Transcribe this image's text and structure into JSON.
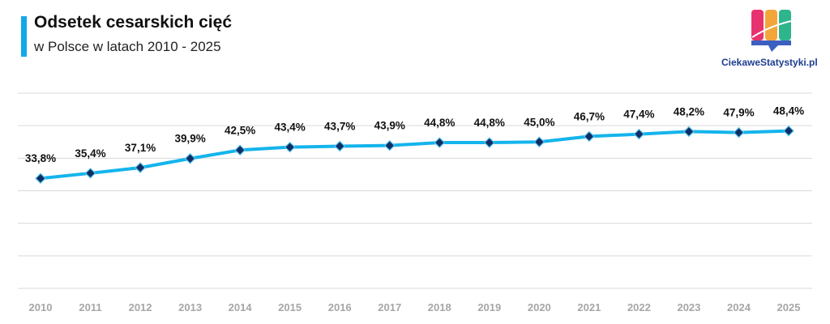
{
  "header": {
    "title": "Odsetek cesarskich cięć",
    "subtitle": "w Polsce w latach 2010 - 2025"
  },
  "logo": {
    "text": "CiekaweStatystyki.pl"
  },
  "colors": {
    "accent": "#12a8ea",
    "line": "#14b4ec",
    "marker": "#0d2f66",
    "grid": "#d9d9d9",
    "tick": "#a6a6a6"
  },
  "chart_data": {
    "type": "line",
    "title": "Odsetek cesarskich cięć",
    "subtitle": "w Polsce w latach 2010 - 2025",
    "categories": [
      "2010",
      "2011",
      "2012",
      "2013",
      "2014",
      "2015",
      "2016",
      "2017",
      "2018",
      "2019",
      "2020",
      "2021",
      "2022",
      "2023",
      "2024",
      "2025"
    ],
    "series": [
      {
        "values": [
          33.8,
          35.4,
          37.1,
          39.9,
          42.5,
          43.4,
          43.7,
          43.9,
          44.8,
          44.8,
          45.0,
          46.7,
          47.4,
          48.2,
          47.9,
          48.4
        ],
        "labels": [
          "33,8%",
          "35,4%",
          "37,1%",
          "39,9%",
          "42,5%",
          "43,4%",
          "43,7%",
          "43,9%",
          "44,8%",
          "44,8%",
          "45,0%",
          "46,7%",
          "47,4%",
          "48,2%",
          "47,9%",
          "48,4%"
        ]
      }
    ],
    "ylim": [
      0,
      60
    ],
    "y_axis_labels_shown": false,
    "grid": true,
    "legend": "none",
    "marker": "diamond"
  }
}
